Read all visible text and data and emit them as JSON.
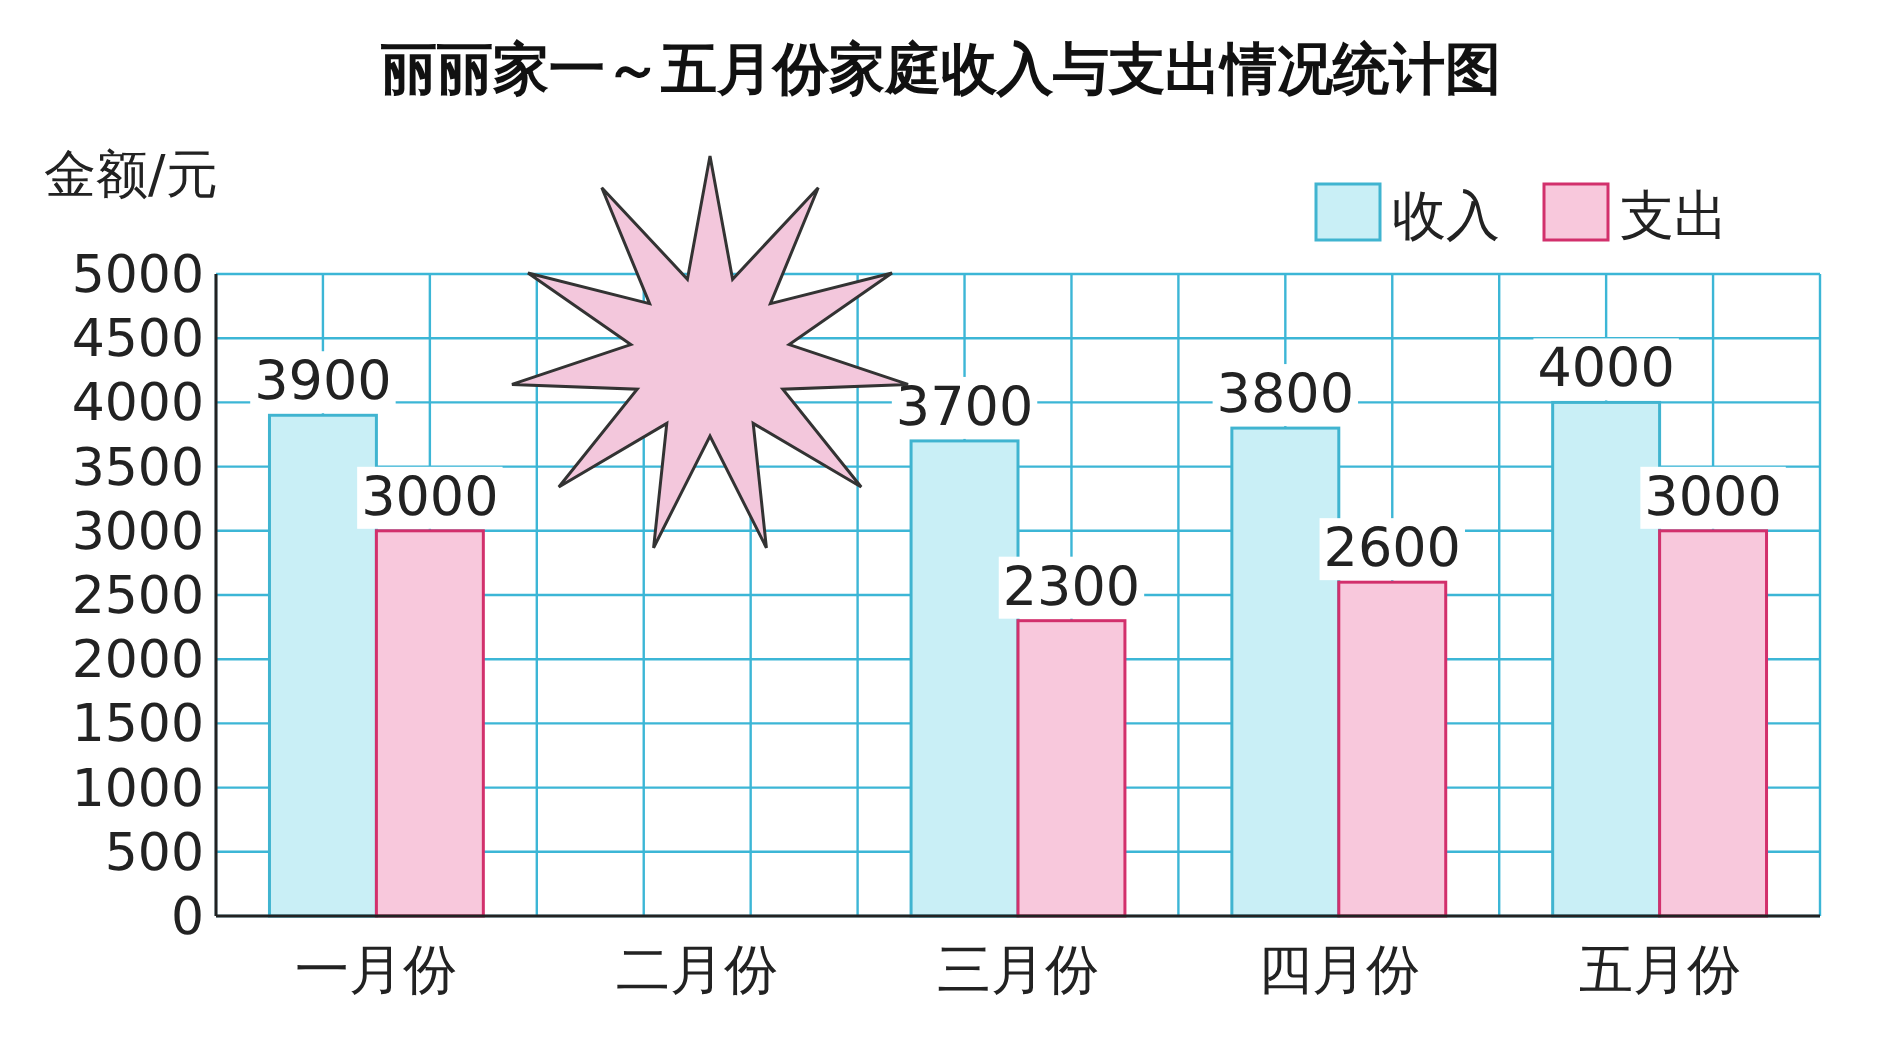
{
  "chart_data": {
    "type": "bar",
    "title": "丽丽家一～五月份家庭收入与支出情况统计图",
    "ylabel": "金额/元",
    "categories": [
      "一月份",
      "二月份",
      "三月份",
      "四月份",
      "五月份"
    ],
    "series": [
      {
        "name": "收入",
        "color": "#c9eff6",
        "values": [
          3900,
          null,
          3700,
          3800,
          4000
        ]
      },
      {
        "name": "支出",
        "color": "#f8c8dc",
        "values": [
          3000,
          null,
          2300,
          2600,
          3000
        ]
      }
    ],
    "ylim": [
      0,
      5000
    ],
    "yticks": [
      0,
      500,
      1000,
      1500,
      2000,
      2500,
      3000,
      3500,
      4000,
      4500,
      5000
    ],
    "grid": true,
    "legend": "top right",
    "data_labels": true
  }
}
